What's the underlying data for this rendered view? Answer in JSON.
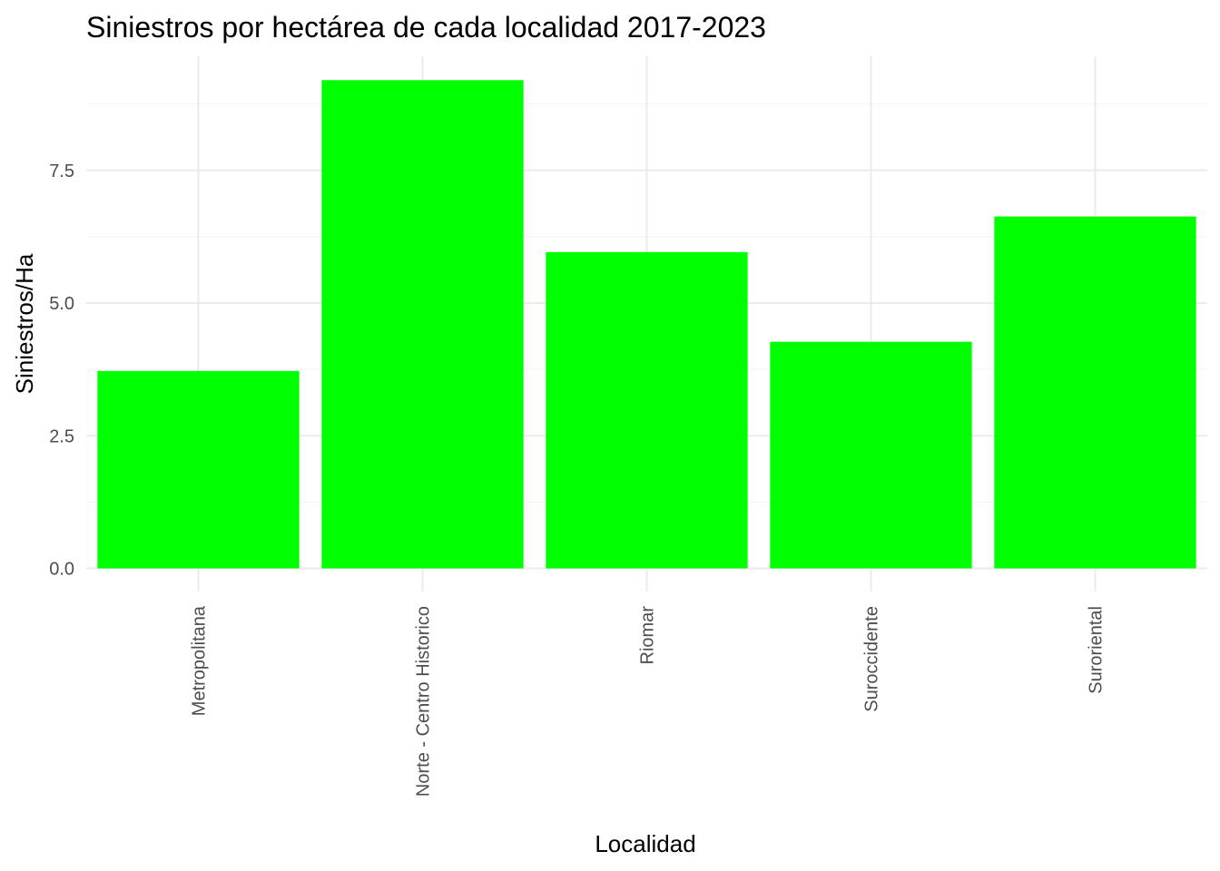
{
  "chart_data": {
    "type": "bar",
    "title": "Siniestros por hectárea de cada localidad 2017-2023",
    "xlabel": "Localidad",
    "ylabel": "Siniestros/Ha",
    "categories": [
      "Metropolitana",
      "Norte - Centro Historico",
      "Riomar",
      "Suroccidente",
      "Suroriental"
    ],
    "values": [
      3.72,
      9.2,
      5.96,
      4.27,
      6.63
    ],
    "ylim": [
      0,
      9.66
    ],
    "yticks": [
      0,
      2.5,
      5,
      7.5
    ],
    "ytick_labels": [
      "0.0",
      "2.5",
      "5.0",
      "7.5"
    ],
    "bar_color": "#00ff00",
    "grid": true,
    "legend": "none"
  }
}
